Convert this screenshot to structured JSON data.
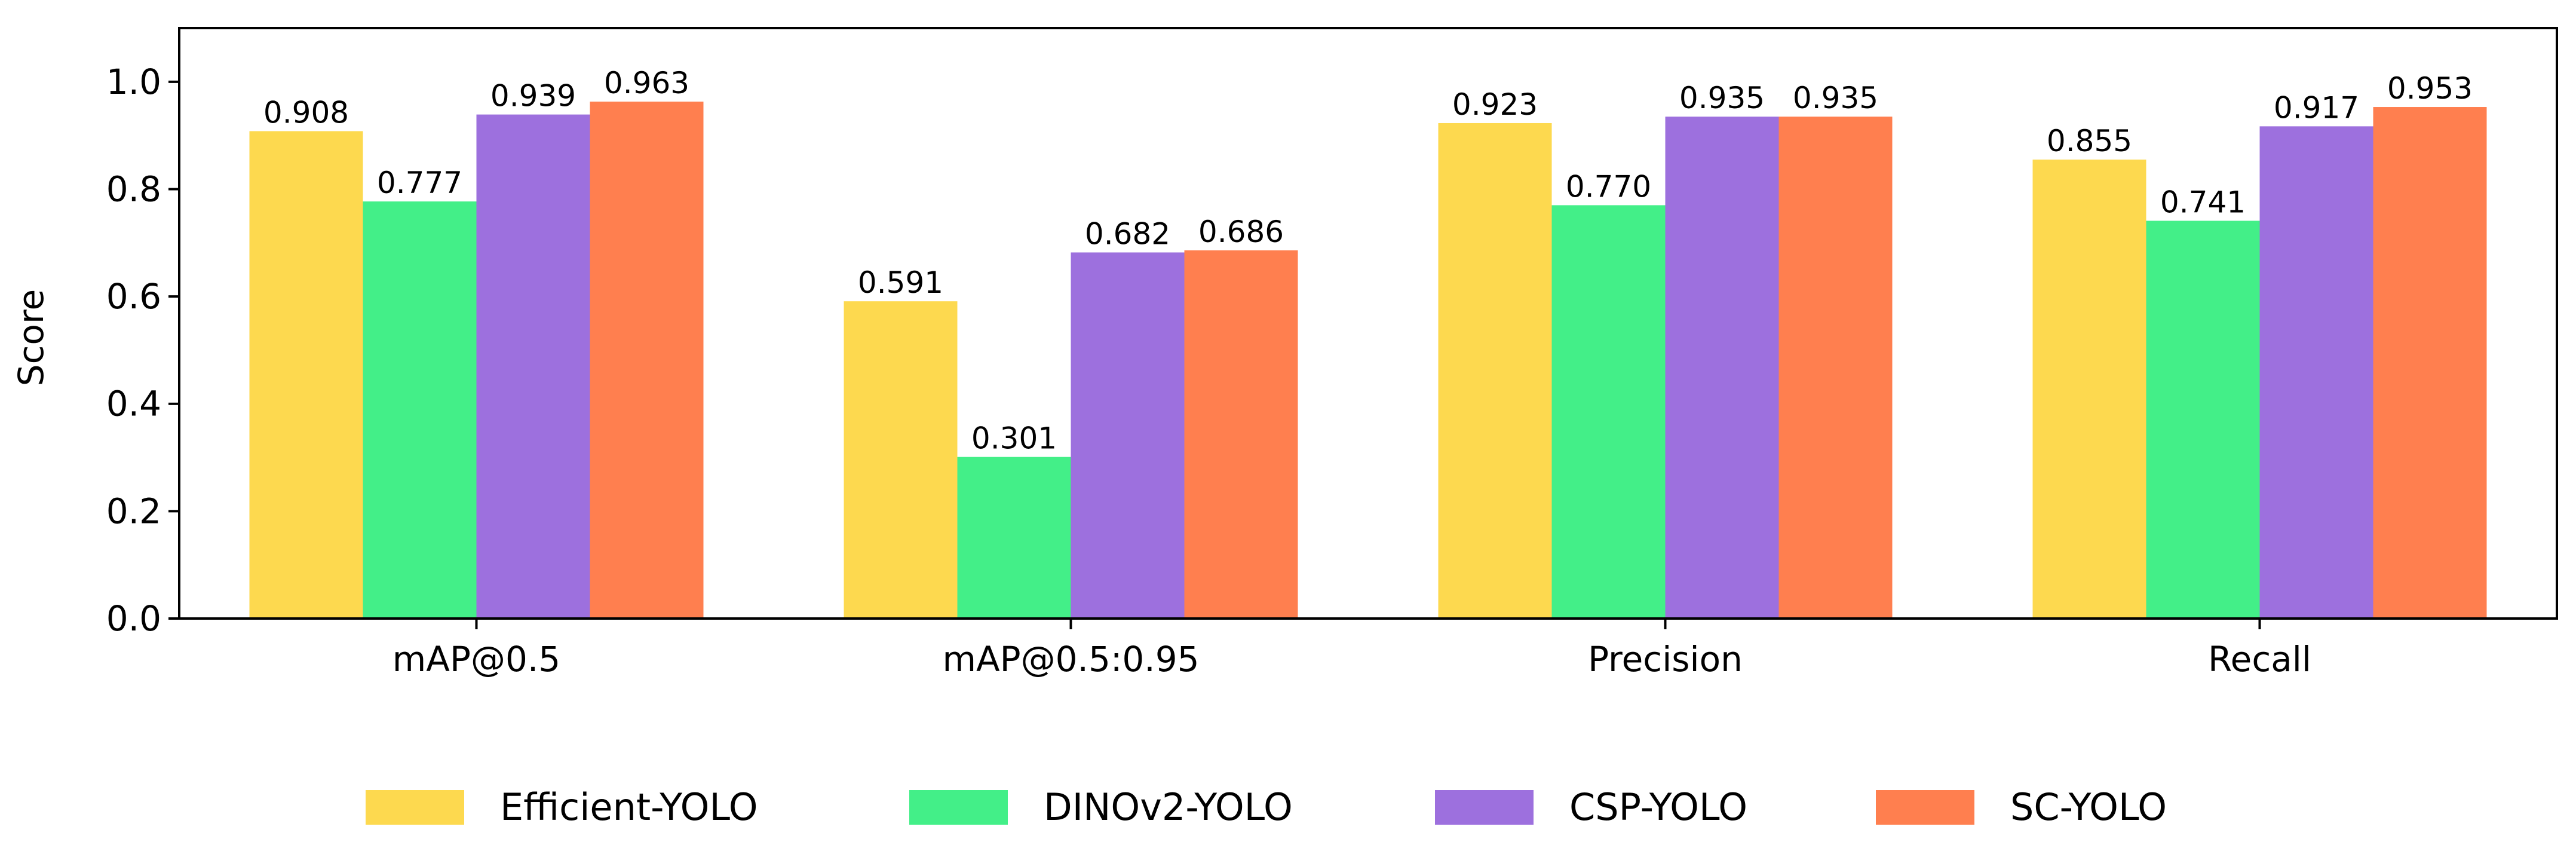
{
  "chart_data": {
    "type": "bar",
    "title": "",
    "xlabel": "",
    "ylabel": "Score",
    "ylim": [
      0,
      1.1
    ],
    "yticks": [
      0.0,
      0.2,
      0.4,
      0.6,
      0.8,
      1.0
    ],
    "ytick_labels": [
      "0.0",
      "0.2",
      "0.4",
      "0.6",
      "0.8",
      "1.0"
    ],
    "categories": [
      "mAP@0.5",
      "mAP@0.5:0.95",
      "Precision",
      "Recall"
    ],
    "series": [
      {
        "name": "Efficient-YOLO",
        "color": "#FDD94F",
        "values": [
          0.908,
          0.591,
          0.923,
          0.855
        ],
        "labels": [
          "0.908",
          "0.591",
          "0.923",
          "0.855"
        ]
      },
      {
        "name": "DINOv2-YOLO",
        "color": "#43EF88",
        "values": [
          0.777,
          0.301,
          0.77,
          0.741
        ],
        "labels": [
          "0.777",
          "0.301",
          "0.770",
          "0.741"
        ]
      },
      {
        "name": "CSP-YOLO",
        "color": "#9D70DE",
        "values": [
          0.939,
          0.682,
          0.935,
          0.917
        ],
        "labels": [
          "0.939",
          "0.682",
          "0.935",
          "0.917"
        ]
      },
      {
        "name": "SC-YOLO",
        "color": "#FF7F4F",
        "values": [
          0.963,
          0.686,
          0.935,
          0.953
        ],
        "labels": [
          "0.963",
          "0.686",
          "0.935",
          "0.953"
        ]
      }
    ],
    "grid": false,
    "legend_position": "bottom"
  }
}
